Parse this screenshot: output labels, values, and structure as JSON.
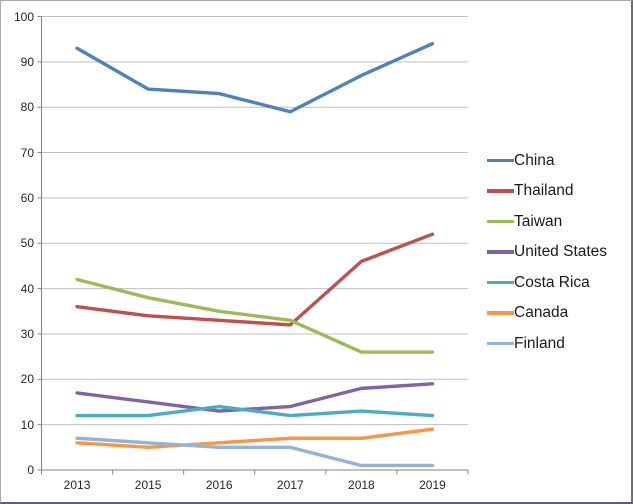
{
  "chart_data": {
    "type": "line",
    "title": "",
    "categories": [
      "2013",
      "2015",
      "2016",
      "2017",
      "2018",
      "2019"
    ],
    "series": [
      {
        "name": "China",
        "color": "#4F81BD",
        "values": [
          93,
          84,
          83,
          79,
          87,
          94
        ]
      },
      {
        "name": "Thailand",
        "color": "#C0504D",
        "values": [
          36,
          34,
          33,
          32,
          46,
          52
        ]
      },
      {
        "name": "Taiwan",
        "color": "#9BBB59",
        "values": [
          42,
          38,
          35,
          33,
          26,
          26
        ]
      },
      {
        "name": "United States",
        "color": "#8064A2",
        "values": [
          17,
          15,
          13,
          14,
          18,
          19
        ]
      },
      {
        "name": "Costa Rica",
        "color": "#4BACC6",
        "values": [
          12,
          12,
          14,
          12,
          13,
          12
        ]
      },
      {
        "name": "Canada",
        "color": "#F79646",
        "values": [
          6,
          5,
          6,
          7,
          7,
          9
        ]
      },
      {
        "name": "Finland",
        "color": "#95B3D7",
        "values": [
          7,
          6,
          5,
          5,
          1,
          1
        ]
      }
    ],
    "y_axis": {
      "min": 0,
      "max": 100,
      "step": 10,
      "tick_labels": [
        "0",
        "10",
        "20",
        "30",
        "40",
        "50",
        "60",
        "70",
        "80",
        "90",
        "100"
      ]
    },
    "x_axis": {
      "tick_labels": [
        "2013",
        "2015",
        "2016",
        "2017",
        "2018",
        "2019"
      ]
    },
    "legend": {
      "position": "right",
      "entries": [
        "China",
        "Thailand",
        "Taiwan",
        "United States",
        "Costa Rica",
        "Canada",
        "Finland"
      ]
    },
    "grid": "horizontal",
    "colors": {
      "background": "#ffffff",
      "gridline": "#C0C0C0",
      "axis": "#808080",
      "tick_label": "#262626",
      "legend_text": "#1a1a1a"
    }
  }
}
